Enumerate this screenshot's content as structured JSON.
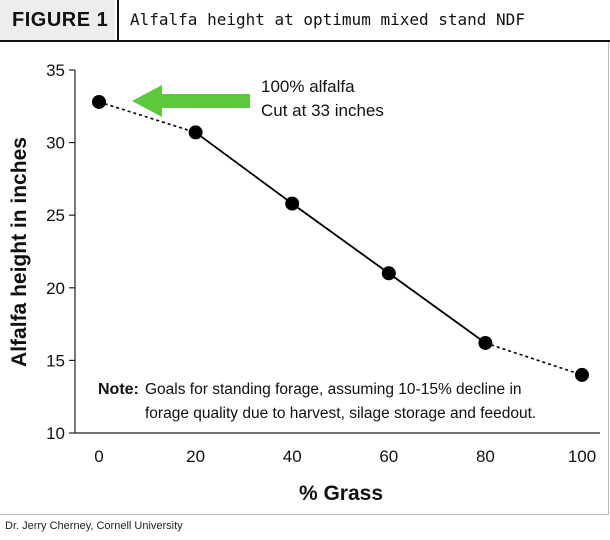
{
  "figure": {
    "label": "FIGURE 1",
    "title": "Alfalfa height at optimum mixed stand NDF"
  },
  "credit": "Dr. Jerry Cherney, Cornell University",
  "colors": {
    "arrow": "#5cc93a",
    "marker": "#000000",
    "line": "#000000"
  },
  "chart_data": {
    "type": "line",
    "title": "Alfalfa height at optimum mixed stand NDF",
    "xlabel": "% Grass",
    "ylabel": "Alfalfa height in inches",
    "x": [
      0,
      20,
      40,
      60,
      80,
      100
    ],
    "series": [
      {
        "values": [
          32.8,
          30.7,
          25.8,
          21.0,
          16.2,
          14.0
        ]
      }
    ],
    "solid_segment_x_range": [
      20,
      80
    ],
    "dashed_segments": [
      [
        0,
        20
      ],
      [
        80,
        100
      ]
    ],
    "xlim": [
      0,
      100
    ],
    "ylim": [
      10,
      35
    ],
    "xticks": [
      "0",
      "20",
      "40",
      "60",
      "80",
      "100"
    ],
    "yticks": [
      "10",
      "15",
      "20",
      "25",
      "30",
      "35"
    ],
    "grid": false,
    "annotations": [
      {
        "lines": [
          "100% alfalfa",
          "Cut at 33 inches"
        ],
        "arrow_points_to_x": 0
      }
    ],
    "note": {
      "label": "Note:",
      "lines": [
        "Goals for standing forage, assuming 10-15% decline in",
        "forage quality due to harvest, silage storage and feedout."
      ]
    }
  }
}
